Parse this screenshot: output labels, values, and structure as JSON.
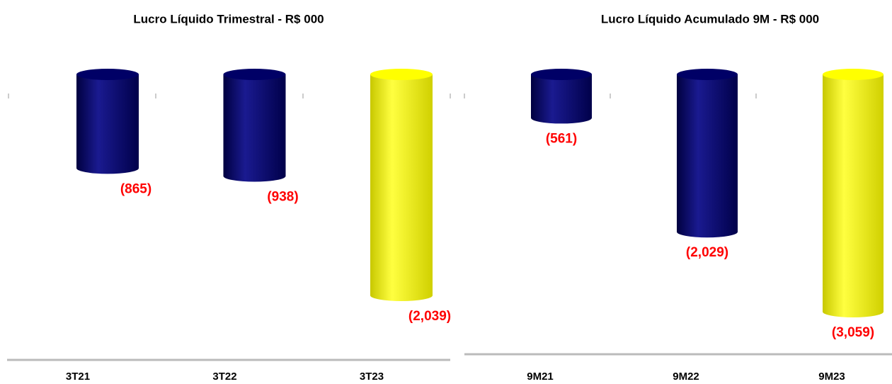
{
  "chart_data": [
    {
      "type": "bar",
      "title": "Lucro Líquido Trimestral - R$ 000",
      "categories": [
        "3T21",
        "3T22",
        "3T23"
      ],
      "values": [
        -865,
        -938,
        -2039
      ],
      "value_labels": [
        "(865)",
        "(938)",
        "(2,039)"
      ],
      "colors": [
        "#000066",
        "#000066",
        "#ffff00"
      ]
    },
    {
      "type": "bar",
      "title": "Lucro Líquido Acumulado 9M - R$ 000",
      "categories": [
        "9M21",
        "9M22",
        "9M23"
      ],
      "values": [
        -561,
        -2029,
        -3059
      ],
      "value_labels": [
        "(561)",
        "(2,029)",
        "(3,059)"
      ],
      "colors": [
        "#000066",
        "#000066",
        "#ffff00"
      ]
    }
  ]
}
